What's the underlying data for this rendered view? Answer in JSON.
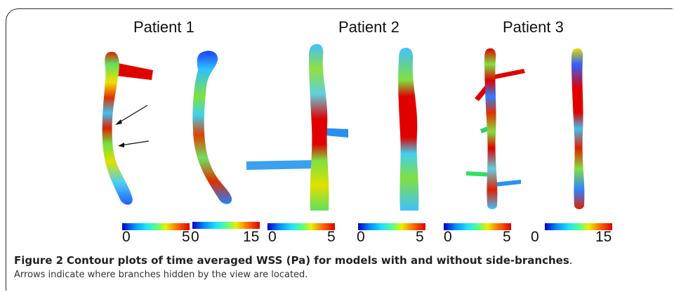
{
  "figure": {
    "patients": [
      "Patient 1",
      "Patient 2",
      "Patient 3"
    ],
    "colorbars": [
      {
        "min": "0",
        "max": "5"
      },
      {
        "min": "0",
        "max": "15"
      },
      {
        "min": "0",
        "max": "5"
      },
      {
        "min": "0",
        "max": "5"
      },
      {
        "min": "0",
        "max": "5"
      },
      {
        "min": "0",
        "max": "15"
      }
    ],
    "colorbar_colors": [
      "#0000c8",
      "#0090ff",
      "#20e0ff",
      "#50ff90",
      "#e8f000",
      "#ff6a00",
      "#e00000"
    ]
  },
  "caption": {
    "label": "Figure 2",
    "title": "Contour plots of time averaged WSS (Pa) for models with and without side-branches",
    "period": ".",
    "note": "Arrows indicate where branches hidden by the view are located."
  }
}
